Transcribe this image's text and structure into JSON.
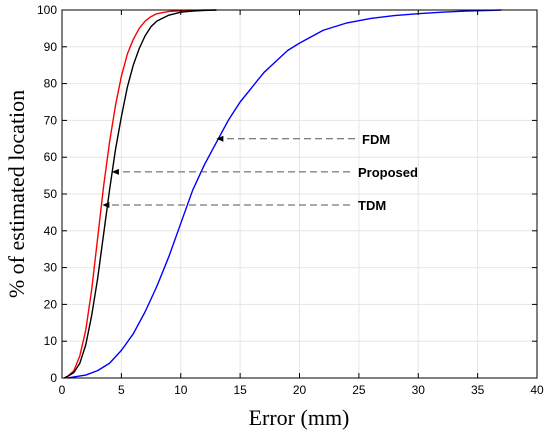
{
  "chart_data": {
    "type": "line",
    "title": "",
    "xlabel": "Error (mm)",
    "ylabel": "% of estimated location",
    "xlim": [
      0,
      40
    ],
    "ylim": [
      0,
      100
    ],
    "xticks": [
      0,
      5,
      10,
      15,
      20,
      25,
      30,
      35,
      40
    ],
    "yticks": [
      0,
      10,
      20,
      30,
      40,
      50,
      60,
      70,
      80,
      90,
      100
    ],
    "grid": true,
    "legend": "none",
    "series": [
      {
        "name": "TDM",
        "color": "#ff0000",
        "x": [
          0.2,
          0.5,
          1.0,
          1.5,
          2.0,
          2.5,
          3.0,
          3.5,
          4.0,
          4.5,
          5.0,
          5.5,
          6.0,
          6.5,
          7.0,
          7.5,
          8.0,
          9.0,
          10.0,
          11.0,
          12.0,
          13.0
        ],
        "y": [
          0,
          0.5,
          2,
          6,
          13,
          24,
          38,
          52,
          64,
          74,
          82,
          88,
          92,
          95,
          97,
          98.2,
          99,
          99.6,
          99.8,
          99.9,
          100,
          100
        ]
      },
      {
        "name": "Proposed",
        "color": "#000000",
        "x": [
          0.2,
          0.5,
          1.0,
          1.5,
          2.0,
          2.5,
          3.0,
          3.5,
          4.0,
          4.5,
          5.0,
          5.5,
          6.0,
          6.5,
          7.0,
          7.5,
          8.0,
          9.0,
          10.0,
          11.0,
          12.0,
          13.0
        ],
        "y": [
          0,
          0.5,
          1.5,
          4,
          9,
          17,
          27,
          39,
          51,
          62,
          71,
          79,
          85,
          89.5,
          93,
          95.5,
          97,
          98.6,
          99.4,
          99.7,
          99.9,
          100
        ]
      },
      {
        "name": "FDM",
        "color": "#0000ff",
        "x": [
          0.5,
          1.0,
          2.0,
          3.0,
          4.0,
          5.0,
          6.0,
          7.0,
          8.0,
          9.0,
          10.0,
          11.0,
          12.0,
          13.0,
          14.0,
          15.0,
          16.0,
          17.0,
          18.0,
          19.0,
          20.0,
          22.0,
          24.0,
          26.0,
          28.0,
          30.0,
          32.0,
          34.0,
          36.0,
          37.0
        ],
        "y": [
          0,
          0.3,
          0.8,
          2,
          4,
          7.5,
          12,
          18,
          25,
          33,
          42,
          51,
          58,
          64,
          70,
          75,
          79,
          83,
          86,
          89,
          91,
          94.5,
          96.5,
          97.7,
          98.5,
          99,
          99.4,
          99.7,
          99.9,
          100
        ]
      }
    ],
    "annotations": [
      {
        "text": "FDM",
        "target": [
          13,
          65
        ]
      },
      {
        "text": "Proposed",
        "target": [
          4.2,
          56
        ]
      },
      {
        "text": "TDM",
        "target": [
          3.4,
          47
        ]
      }
    ]
  }
}
